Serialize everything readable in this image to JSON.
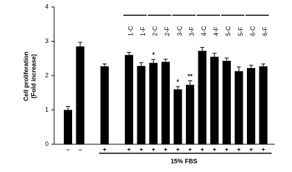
{
  "chart_data": {
    "type": "bar",
    "ylabel": [
      "Cell proliferation",
      "(Fold increase)"
    ],
    "categories": [
      "–",
      "–",
      null,
      "+",
      null,
      "+",
      "+",
      "+",
      "+",
      "+",
      "+",
      "+",
      "+",
      "+",
      "+",
      "+",
      "+"
    ],
    "sample_labels": [
      null,
      null,
      null,
      null,
      null,
      "1-C",
      "1-F",
      "2-C",
      "2-F",
      "3-C",
      "3-F",
      "4-C",
      "4-F",
      "5-C",
      "5-F",
      "6-C",
      "6-F"
    ],
    "values": [
      1.0,
      2.85,
      null,
      2.27,
      null,
      2.6,
      2.28,
      2.37,
      2.4,
      1.6,
      1.73,
      2.72,
      2.55,
      2.43,
      2.13,
      2.22,
      2.27
    ],
    "errors": [
      0.1,
      0.12,
      null,
      0.07,
      null,
      0.08,
      0.1,
      0.1,
      0.08,
      0.08,
      0.12,
      0.1,
      0.1,
      0.08,
      0.12,
      0.08,
      0.07
    ],
    "annotations": [
      null,
      null,
      null,
      null,
      null,
      null,
      null,
      "*",
      null,
      "*",
      "**",
      null,
      null,
      null,
      null,
      null,
      null
    ],
    "group_label": "15% FBS",
    "color": "#000000",
    "ylim": [
      0,
      4
    ],
    "yticks": [
      0,
      1,
      2,
      3,
      4
    ]
  }
}
